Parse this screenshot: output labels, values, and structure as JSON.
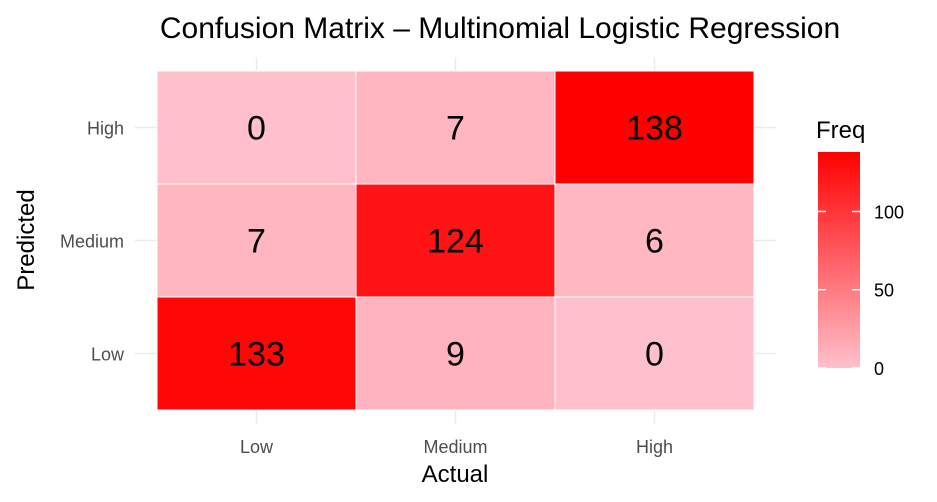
{
  "chart_data": {
    "type": "heatmap",
    "title": "Confusion Matrix – Multinomial Logistic Regression",
    "xlabel": "Actual",
    "ylabel": "Predicted",
    "x_categories": [
      "Low",
      "Medium",
      "High"
    ],
    "y_categories": [
      "Low",
      "Medium",
      "High"
    ],
    "cells": [
      {
        "actual": "Low",
        "predicted": "High",
        "value": 0
      },
      {
        "actual": "Medium",
        "predicted": "High",
        "value": 7
      },
      {
        "actual": "High",
        "predicted": "High",
        "value": 138
      },
      {
        "actual": "Low",
        "predicted": "Medium",
        "value": 7
      },
      {
        "actual": "Medium",
        "predicted": "Medium",
        "value": 124
      },
      {
        "actual": "High",
        "predicted": "Medium",
        "value": 6
      },
      {
        "actual": "Low",
        "predicted": "Low",
        "value": 133
      },
      {
        "actual": "Medium",
        "predicted": "Low",
        "value": 9
      },
      {
        "actual": "High",
        "predicted": "Low",
        "value": 0
      }
    ],
    "legend": {
      "title": "Freq",
      "ticks": [
        0,
        50,
        100
      ],
      "range": [
        0,
        138
      ],
      "placement": "right"
    },
    "colors": {
      "low": "#ffc0cb",
      "high": "#ff0000"
    },
    "grid": true
  }
}
